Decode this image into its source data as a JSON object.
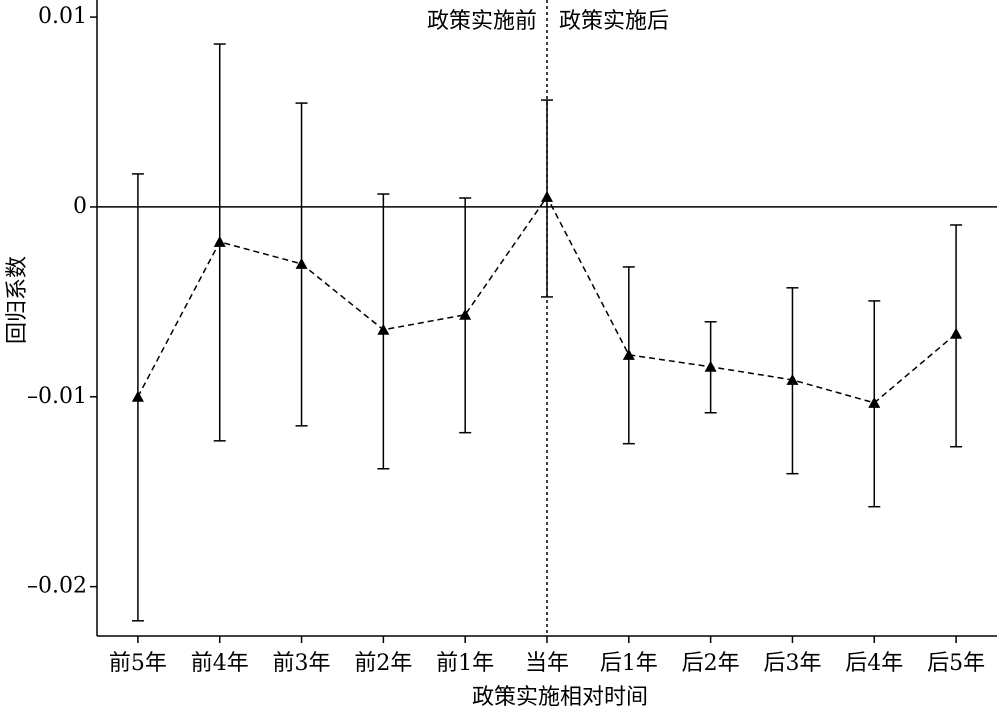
{
  "chart_data": {
    "type": "errorline",
    "xlabel": "政策实施相对时间",
    "ylabel": "回归系数",
    "annotations": [
      "政策实施前",
      "政策实施后"
    ],
    "categories": [
      "前5年",
      "前4年",
      "前3年",
      "前2年",
      "前1年",
      "当年",
      "后1年",
      "后2年",
      "后3年",
      "后4年",
      "后5年"
    ],
    "series": [
      {
        "color": "#000000",
        "values": [
          -0.01,
          -0.00184,
          -0.003,
          -0.00647,
          -0.00568,
          0.00053,
          -0.00779,
          -0.00842,
          -0.00911,
          -0.01032,
          -0.00668
        ],
        "lower": [
          -0.0218,
          -0.01232,
          -0.01153,
          -0.01379,
          -0.01189,
          -0.00474,
          -0.01247,
          -0.01084,
          -0.01405,
          -0.01579,
          -0.01263
        ],
        "upper": [
          0.00174,
          0.00858,
          0.00547,
          0.00068,
          0.00047,
          0.00563,
          -0.00316,
          -0.00605,
          -0.00426,
          -0.00495,
          -0.00095
        ]
      }
    ],
    "ylim": [
      -0.0226,
      0.0109
    ],
    "yticks": [
      0.01,
      0,
      {
        "value": -0.01,
        "label": "–0.01"
      },
      {
        "value": -0.02,
        "label": "–0.02"
      }
    ],
    "reference_y": 0,
    "reference_x": "当年"
  }
}
